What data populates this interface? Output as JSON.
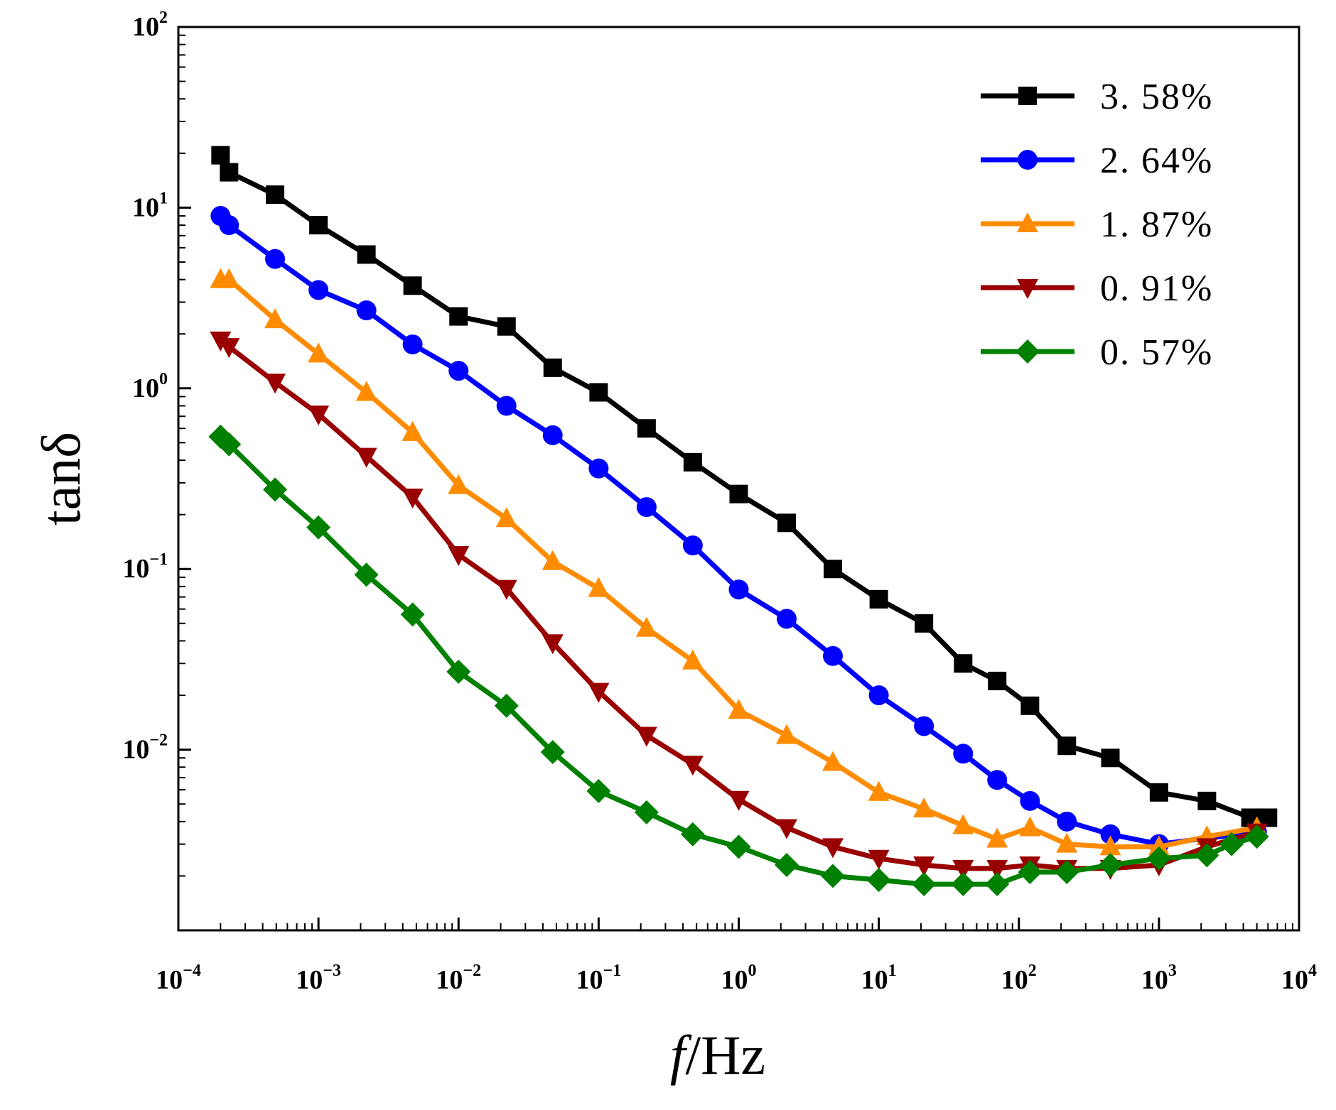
{
  "chart_data": {
    "type": "line",
    "xlabel_italic": "f",
    "xlabel_rest": "/Hz",
    "ylabel": "tanδ",
    "xscale": "log",
    "yscale": "log",
    "xlim": [
      0.0001,
      10000
    ],
    "ylim": [
      0.001,
      100
    ],
    "x_ticks": [
      {
        "base": "10",
        "exp": "−4"
      },
      {
        "base": "10",
        "exp": "−3"
      },
      {
        "base": "10",
        "exp": "−2"
      },
      {
        "base": "10",
        "exp": "−1"
      },
      {
        "base": "10",
        "exp": "0"
      },
      {
        "base": "10",
        "exp": "1"
      },
      {
        "base": "10",
        "exp": "2"
      },
      {
        "base": "10",
        "exp": "3"
      },
      {
        "base": "10",
        "exp": "4"
      }
    ],
    "y_ticks": [
      {
        "value": 0.01,
        "base": "10",
        "exp": "−2"
      },
      {
        "value": 0.1,
        "base": "10",
        "exp": "−1"
      },
      {
        "value": 1,
        "base": "10",
        "exp": "0"
      },
      {
        "value": 10,
        "base": "10",
        "exp": "1"
      },
      {
        "value": 100,
        "base": "10",
        "exp": "2"
      }
    ],
    "legend_position": "top-right",
    "grid": false,
    "series": [
      {
        "name": "3. 58%",
        "color": "#000000",
        "marker": "square",
        "x": [
          0.0002,
          0.00023,
          0.00049,
          0.001,
          0.0022,
          0.0047,
          0.01,
          0.022,
          0.047,
          0.1,
          0.22,
          0.47,
          1.0,
          2.2,
          4.7,
          10,
          21,
          40,
          70,
          120,
          220,
          450,
          1000,
          2200,
          4500,
          6000
        ],
        "y": [
          19.5,
          15.7,
          11.8,
          8.0,
          5.5,
          3.7,
          2.5,
          2.2,
          1.3,
          0.95,
          0.6,
          0.39,
          0.26,
          0.18,
          0.1,
          0.068,
          0.05,
          0.03,
          0.024,
          0.0175,
          0.0105,
          0.009,
          0.0058,
          0.0052,
          0.0042,
          0.0042
        ]
      },
      {
        "name": "2. 64%",
        "color": "#0000FF",
        "marker": "circle",
        "x": [
          0.0002,
          0.00023,
          0.00049,
          0.001,
          0.0022,
          0.0047,
          0.01,
          0.022,
          0.047,
          0.1,
          0.22,
          0.47,
          1.0,
          2.2,
          4.7,
          10,
          21,
          40,
          70,
          120,
          220,
          450,
          1000,
          5000
        ],
        "y": [
          9.0,
          8.0,
          5.2,
          3.5,
          2.7,
          1.75,
          1.25,
          0.8,
          0.55,
          0.36,
          0.22,
          0.135,
          0.077,
          0.053,
          0.033,
          0.02,
          0.0135,
          0.0095,
          0.0068,
          0.0052,
          0.004,
          0.0034,
          0.003,
          0.0035
        ]
      },
      {
        "name": "1. 87%",
        "color": "#FF8C00",
        "marker": "triangle-up",
        "x": [
          0.0002,
          0.00023,
          0.00049,
          0.001,
          0.0022,
          0.0047,
          0.01,
          0.022,
          0.047,
          0.1,
          0.22,
          0.47,
          1.0,
          2.2,
          4.7,
          10,
          21,
          40,
          70,
          120,
          220,
          450,
          1000,
          2200,
          5000
        ],
        "y": [
          4.0,
          4.0,
          2.4,
          1.55,
          0.95,
          0.57,
          0.29,
          0.19,
          0.11,
          0.078,
          0.047,
          0.031,
          0.0165,
          0.012,
          0.0085,
          0.0058,
          0.0047,
          0.0038,
          0.0032,
          0.0037,
          0.003,
          0.0029,
          0.0029,
          0.0033,
          0.0037
        ]
      },
      {
        "name": "0. 91%",
        "color": "#990000",
        "marker": "triangle-down",
        "x": [
          0.0002,
          0.00023,
          0.00049,
          0.001,
          0.0022,
          0.0047,
          0.01,
          0.022,
          0.047,
          0.1,
          0.22,
          0.47,
          1.0,
          2.2,
          4.7,
          10,
          21,
          40,
          70,
          120,
          220,
          450,
          1000,
          2200,
          5000
        ],
        "y": [
          1.85,
          1.7,
          1.08,
          0.72,
          0.42,
          0.25,
          0.12,
          0.078,
          0.039,
          0.021,
          0.012,
          0.0083,
          0.0053,
          0.0037,
          0.0029,
          0.0025,
          0.0023,
          0.0022,
          0.0022,
          0.0023,
          0.0022,
          0.0022,
          0.0023,
          0.0029,
          0.0035
        ]
      },
      {
        "name": "0. 57%",
        "color": "#008000",
        "marker": "diamond",
        "x": [
          0.0002,
          0.00023,
          0.00049,
          0.001,
          0.0022,
          0.0047,
          0.01,
          0.022,
          0.047,
          0.1,
          0.22,
          0.47,
          1.0,
          2.2,
          4.7,
          10,
          21,
          40,
          70,
          120,
          220,
          450,
          1000,
          2200,
          3300,
          5000
        ],
        "y": [
          0.54,
          0.49,
          0.275,
          0.17,
          0.093,
          0.056,
          0.027,
          0.0175,
          0.0097,
          0.0059,
          0.0045,
          0.0034,
          0.0029,
          0.0023,
          0.002,
          0.0019,
          0.0018,
          0.0018,
          0.0018,
          0.0021,
          0.0021,
          0.0023,
          0.0025,
          0.0026,
          0.003,
          0.0033
        ]
      }
    ]
  }
}
